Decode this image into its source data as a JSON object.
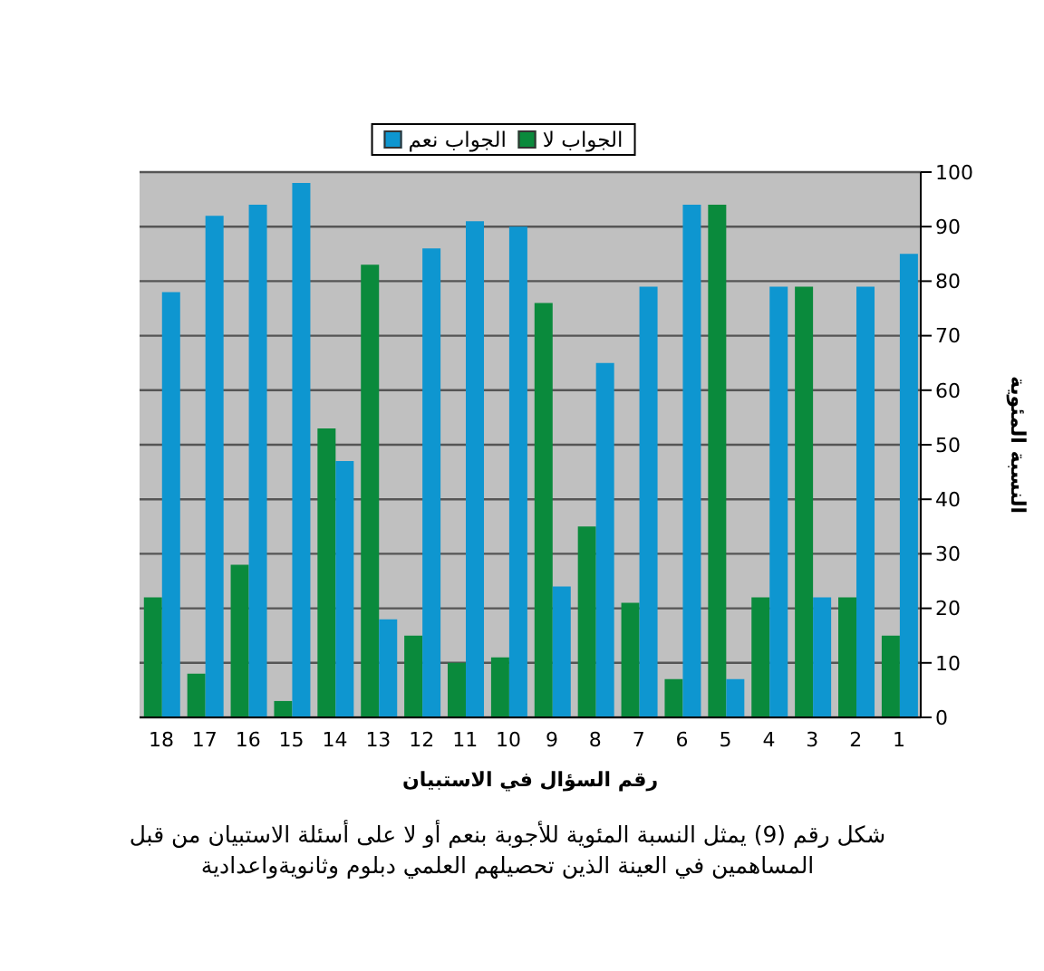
{
  "chart_data": {
    "type": "bar",
    "xlabel": "رقم السؤال في الاستبيان",
    "ylabel": "النسبة المئوية",
    "annotations": [
      "شكل رقم (9) يمثل النسبة المئوية للأجوبة بنعم أو لا على أسئلة الاستبيان من قبل المساهمين في العينة الذين تحصيلهم العلمي دبلوم وثانويةواعدادية"
    ],
    "categories": [
      "18",
      "17",
      "16",
      "15",
      "14",
      "13",
      "12",
      "11",
      "10",
      "9",
      "8",
      "7",
      "6",
      "5",
      "4",
      "3",
      "2",
      "1"
    ],
    "series": [
      {
        "name": "الجواب نعم",
        "color": "#0e96d0",
        "values": [
          78,
          92,
          94,
          98,
          47,
          18,
          86,
          91,
          90,
          24,
          65,
          79,
          94,
          7,
          79,
          22,
          79,
          85
        ]
      },
      {
        "name": "الجواب لا",
        "color": "#0a8a3c",
        "values": [
          22,
          8,
          28,
          3,
          53,
          83,
          15,
          10,
          11,
          76,
          35,
          21,
          7,
          94,
          22,
          79,
          22,
          15
        ]
      }
    ],
    "ylim": [
      0,
      100
    ],
    "yticks": [
      0,
      10,
      20,
      30,
      40,
      50,
      60,
      70,
      80,
      90,
      100
    ],
    "grid": "y",
    "legend": "top"
  }
}
